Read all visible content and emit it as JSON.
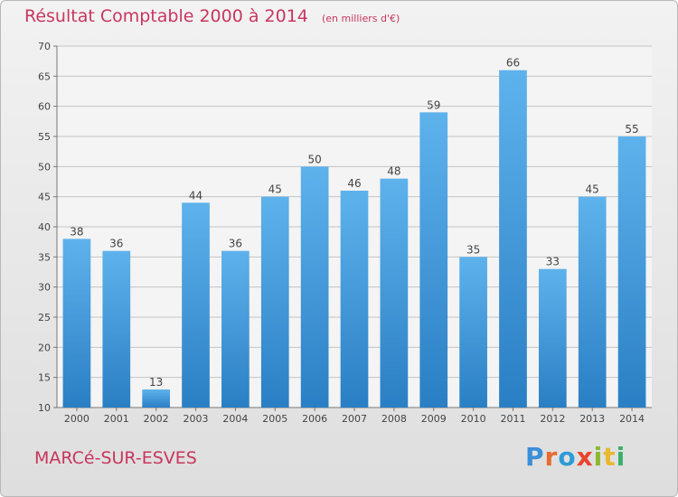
{
  "header": {
    "title": "Résultat Comptable 2000 à 2014",
    "subtitle": "(en milliers d'€)"
  },
  "footer": {
    "town": "MARCé-SUR-ESVES",
    "logo_letters": [
      "P",
      "r",
      "o",
      "x",
      "i",
      "t",
      "i"
    ]
  },
  "colors": {
    "title": "#c8365f",
    "bar_top": "#5eb2ec",
    "bar_bottom": "#2a7fc4",
    "grid": "#c4c4c4"
  },
  "chart_data": {
    "type": "bar",
    "title": "Résultat Comptable 2000 à 2014",
    "subtitle": "(en milliers d'€)",
    "xlabel": "",
    "ylabel": "",
    "categories": [
      "2000",
      "2001",
      "2002",
      "2003",
      "2004",
      "2005",
      "2006",
      "2007",
      "2008",
      "2009",
      "2010",
      "2011",
      "2012",
      "2013",
      "2014"
    ],
    "values": [
      38,
      36,
      13,
      44,
      36,
      45,
      50,
      46,
      48,
      59,
      35,
      66,
      33,
      45,
      55
    ],
    "ylim": [
      10,
      70
    ],
    "yticks": [
      10,
      15,
      20,
      25,
      30,
      35,
      40,
      45,
      50,
      55,
      60,
      65,
      70
    ],
    "grid": true,
    "data_labels": true
  }
}
